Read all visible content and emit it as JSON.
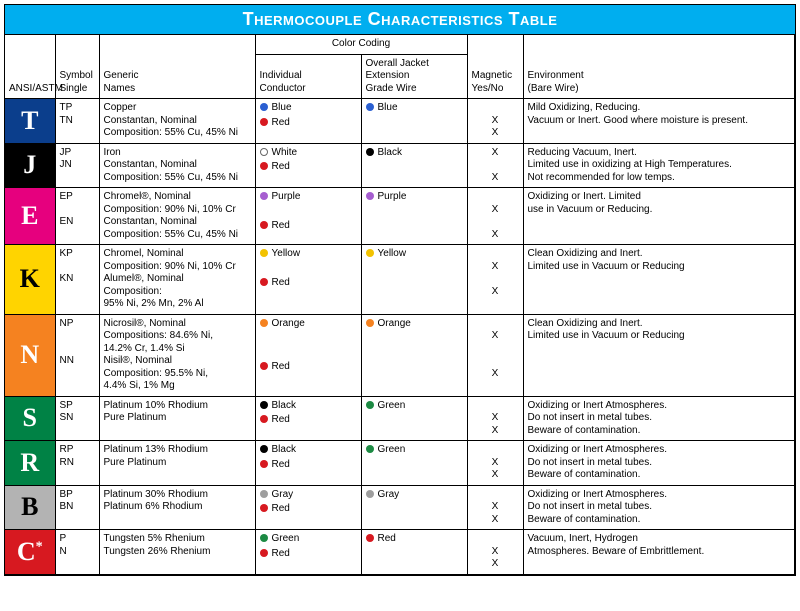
{
  "title": "Thermocouple Characteristics Table",
  "columns": {
    "ansi": "ANSI/ASTM",
    "symbol": "Symbol\nSingle",
    "names": "Generic\nNames",
    "color_span": "Color Coding",
    "individual": "Individual\nConductor",
    "jacket": "Overall Jacket\nExtension\nGrade Wire",
    "magnetic": "Magnetic\nYes/No",
    "environment": "Environment\n(Bare Wire)"
  },
  "ansi_colors": {
    "T": {
      "bg": "#0b3e8c",
      "fg": "#ffffff"
    },
    "J": {
      "bg": "#000000",
      "fg": "#ffffff"
    },
    "E": {
      "bg": "#e6007e",
      "fg": "#ffffff"
    },
    "K": {
      "bg": "#ffd400",
      "fg": "#000000"
    },
    "N": {
      "bg": "#f58220",
      "fg": "#ffffff"
    },
    "S": {
      "bg": "#008245",
      "fg": "#ffffff"
    },
    "R": {
      "bg": "#008245",
      "fg": "#ffffff"
    },
    "B": {
      "bg": "#b3b3b3",
      "fg": "#000000"
    },
    "C": {
      "bg": "#d71920",
      "fg": "#ffffff"
    }
  },
  "dot_colors": {
    "Blue": "#2a5fd1",
    "Red": "#d71920",
    "White": "#ffffff",
    "Black": "#000000",
    "Purple": "#a65ed0",
    "Yellow": "#f2c200",
    "Orange": "#f58220",
    "Gray": "#9e9e9e",
    "Green": "#1c8a43"
  },
  "rows": [
    {
      "letter": "T",
      "star": false,
      "symbols": "TP\nTN",
      "names": "Copper\nConstantan, Nominal\nComposition: 55% Cu, 45% Ni",
      "individual": [
        [
          "Blue",
          "Blue"
        ],
        [
          "Red",
          "Red"
        ]
      ],
      "jacket": [
        [
          "Blue",
          "Blue"
        ]
      ],
      "magnetic": [
        "",
        "X",
        "X"
      ],
      "environment": "Mild Oxidizing, Reducing.\nVacuum or Inert. Good where moisture is present."
    },
    {
      "letter": "J",
      "star": false,
      "symbols": "JP\nJN",
      "names": "Iron\nConstantan, Nominal\nComposition: 55% Cu, 45% Ni",
      "individual": [
        [
          "White",
          "White"
        ],
        [
          "Red",
          "Red"
        ]
      ],
      "jacket": [
        [
          "Black",
          "Black"
        ]
      ],
      "magnetic": [
        "X",
        "",
        "X"
      ],
      "environment": "Reducing Vacuum, Inert.\nLimited use in oxidizing at High Temperatures.\nNot recommended for low temps."
    },
    {
      "letter": "E",
      "star": false,
      "symbols": "EP\n\nEN",
      "names": "Chromel®, Nominal\nComposition: 90% Ni, 10% Cr\nConstantan, Nominal\nComposition: 55% Cu, 45% Ni",
      "individual": [
        [
          "Purple",
          "Purple"
        ],
        null,
        [
          "Red",
          "Red"
        ]
      ],
      "jacket": [
        [
          "Purple",
          "Purple"
        ]
      ],
      "magnetic": [
        "",
        "X",
        "",
        "X"
      ],
      "environment": "Oxidizing or Inert. Limited\nuse in Vacuum or Reducing."
    },
    {
      "letter": "K",
      "star": false,
      "symbols": "KP\n\nKN",
      "names": "Chromel, Nominal\nComposition: 90% Ni, 10% Cr\nAlumel®, Nominal\nComposition:\n95% Ni, 2% Mn, 2% Al",
      "individual": [
        [
          "Yellow",
          "Yellow"
        ],
        null,
        [
          "Red",
          "Red"
        ]
      ],
      "jacket": [
        [
          "Yellow",
          "Yellow"
        ]
      ],
      "magnetic": [
        "",
        "X",
        "",
        "X"
      ],
      "environment": "Clean Oxidizing and Inert.\nLimited use in Vacuum or Reducing"
    },
    {
      "letter": "N",
      "star": false,
      "symbols": "NP\n\n\nNN",
      "names": "Nicrosil®, Nominal\nCompositions: 84.6% Ni,\n14.2% Cr, 1.4% Si\nNisil®, Nominal\nComposition: 95.5% Ni,\n4.4% Si, 1% Mg",
      "individual": [
        [
          "Orange",
          "Orange"
        ],
        null,
        null,
        [
          "Red",
          "Red"
        ]
      ],
      "jacket": [
        [
          "Orange",
          "Orange"
        ]
      ],
      "magnetic": [
        "",
        "X",
        "",
        "",
        "X"
      ],
      "environment": "Clean Oxidizing and Inert.\nLimited use in Vacuum or Reducing"
    },
    {
      "letter": "S",
      "star": false,
      "symbols": "SP\nSN",
      "names": "Platinum 10% Rhodium\nPure Platinum",
      "individual": [
        [
          "Black",
          "Black"
        ],
        [
          "Red",
          "Red"
        ]
      ],
      "jacket": [
        [
          "Green",
          "Green"
        ]
      ],
      "magnetic": [
        "",
        "X",
        "X"
      ],
      "environment": "Oxidizing or Inert Atmospheres.\nDo not insert in metal tubes.\nBeware of contamination."
    },
    {
      "letter": "R",
      "star": false,
      "symbols": "RP\nRN",
      "names": "Platinum 13% Rhodium\nPure Platinum",
      "individual": [
        [
          "Black",
          "Black"
        ],
        [
          "Red",
          "Red"
        ]
      ],
      "jacket": [
        [
          "Green",
          "Green"
        ]
      ],
      "magnetic": [
        "",
        "X",
        "X"
      ],
      "environment": "Oxidizing or Inert Atmospheres.\nDo not insert in metal tubes.\nBeware of contamination."
    },
    {
      "letter": "B",
      "star": false,
      "symbols": "BP\nBN",
      "names": "Platinum 30% Rhodium\nPlatinum 6% Rhodium",
      "individual": [
        [
          "Gray",
          "Gray"
        ],
        [
          "Red",
          "Red"
        ]
      ],
      "jacket": [
        [
          "Gray",
          "Gray"
        ]
      ],
      "magnetic": [
        "",
        "X",
        "X"
      ],
      "environment": "Oxidizing or Inert Atmospheres.\nDo not insert in metal tubes.\nBeware of contamination."
    },
    {
      "letter": "C",
      "star": true,
      "symbols": "P\nN",
      "names": "Tungsten 5% Rhenium\nTungsten 26% Rhenium",
      "individual": [
        [
          "Green",
          "Green"
        ],
        [
          "Red",
          "Red"
        ]
      ],
      "jacket": [
        [
          "Red",
          "Red"
        ]
      ],
      "magnetic": [
        "",
        "X",
        "X"
      ],
      "environment": "Vacuum, Inert, Hydrogen\nAtmospheres. Beware of Embrittlement."
    }
  ]
}
